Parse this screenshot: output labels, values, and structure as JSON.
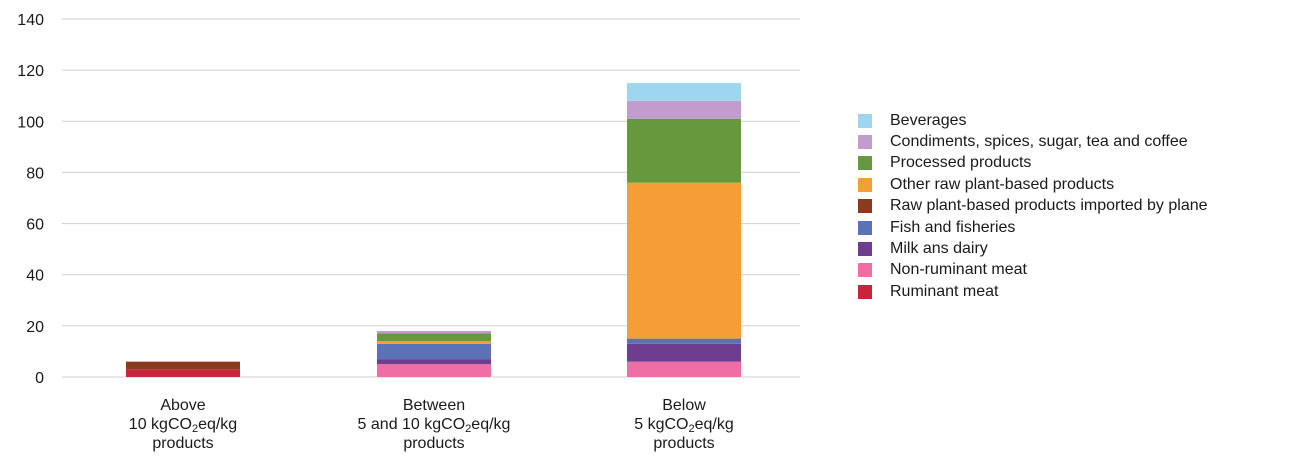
{
  "chart_data": {
    "type": "bar",
    "stacked": true,
    "categories": [
      {
        "line1": "Above",
        "line2_pre": "10 kgCO",
        "line2_sub": "2",
        "line2_post": "eq/kg",
        "line3": "products"
      },
      {
        "line1": "Between",
        "line2_pre": "5 and 10 kgCO",
        "line2_sub": "2",
        "line2_post": "eq/kg",
        "line3": "products"
      },
      {
        "line1": "Below",
        "line2_pre": "5 kgCO",
        "line2_sub": "2",
        "line2_post": "eq/kg",
        "line3": "products"
      }
    ],
    "series": [
      {
        "name": "Ruminant meat",
        "color": "#c8243c",
        "values": [
          3,
          0,
          0
        ]
      },
      {
        "name": "Non-ruminant meat",
        "color": "#ef6ea4",
        "values": [
          0,
          5,
          6
        ]
      },
      {
        "name": "Milk ans dairy",
        "color": "#6d3e8f",
        "values": [
          0,
          2,
          7
        ]
      },
      {
        "name": "Fish and fisheries",
        "color": "#5b72b8",
        "values": [
          0,
          6,
          2
        ]
      },
      {
        "name": "Raw plant-based products imported by plane",
        "color": "#8b3a1e",
        "values": [
          3,
          0,
          0
        ]
      },
      {
        "name": "Other raw plant-based products",
        "color": "#f59e38",
        "values": [
          0,
          1,
          61
        ]
      },
      {
        "name": "Processed products",
        "color": "#66993e",
        "values": [
          0,
          3,
          25
        ]
      },
      {
        "name": "Condiments, spices, sugar, tea and coffee",
        "color": "#c29ccc",
        "values": [
          0,
          1,
          7
        ]
      },
      {
        "name": "Beverages",
        "color": "#9fd6ef",
        "values": [
          0,
          0,
          7
        ]
      }
    ],
    "ylim": [
      0,
      140
    ],
    "yticks": [
      0,
      20,
      40,
      60,
      80,
      100,
      120,
      140
    ],
    "grid": true,
    "legend_position": "right",
    "legend_order": [
      "Beverages",
      "Condiments, spices, sugar, tea and coffee",
      "Processed products",
      "Other raw plant-based products",
      "Raw plant-based products imported by plane",
      "Fish and fisheries",
      "Milk ans dairy",
      "Non-ruminant meat",
      "Ruminant meat"
    ]
  }
}
